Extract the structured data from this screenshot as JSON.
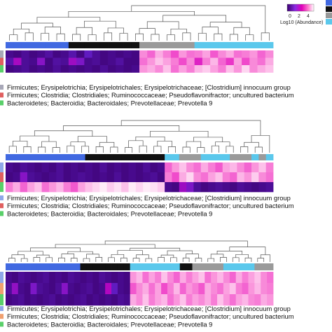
{
  "legend": {
    "title": "Log10 (Abundance)",
    "ticks": [
      "0",
      "2",
      "4"
    ],
    "gradient": [
      "#3a006e",
      "#8a2be2",
      "#e000b8",
      "#ff80d0",
      "#ffffff"
    ],
    "group_colors": [
      "#4169e1",
      "#111111",
      "#999999",
      "#5bc8ec"
    ]
  },
  "colors": {
    "group_blue": "#4169e1",
    "group_black": "#111111",
    "group_grey": "#9a9a9a",
    "group_cyan": "#5bc8ec",
    "row_grey": "#a8a8b8",
    "row_red": "#e06060",
    "row_green": "#5ad06a",
    "row_blue": "#8fa8e8",
    "row_orange": "#f0a070"
  },
  "chart_data": [
    {
      "type": "heatmap",
      "groups": [
        "blue",
        "blue",
        "blue",
        "blue",
        "blue",
        "blue",
        "blue",
        "blue",
        "black",
        "black",
        "black",
        "black",
        "black",
        "black",
        "black",
        "black",
        "black",
        "grey",
        "grey",
        "grey",
        "grey",
        "grey",
        "grey",
        "grey",
        "cyan",
        "cyan",
        "cyan",
        "cyan",
        "cyan",
        "cyan",
        "cyan",
        "cyan",
        "cyan",
        "cyan"
      ],
      "row_colors": [
        "row_grey",
        "row_red",
        "row_green"
      ],
      "rows": [
        "Firmicutes; Erysipelotrichia; Erysipelotrichales; Erysipelotrichaceae; [Clostridium] innocuum group",
        "Firmicutes; Clostridia; Clostridiales; Ruminococcaceae; Pseudoflavonifractor; uncultured bacterium",
        "Bacteroidetes; Bacteroidia; Bacteroidales; Prevotellaceae; Prevotella 9"
      ],
      "values": [
        [
          0.3,
          0.2,
          0.4,
          0.2,
          0.3,
          0.5,
          0.2,
          0.3,
          0.6,
          0.2,
          0.8,
          0.4,
          0.2,
          0.3,
          0.2,
          0.3,
          0.2,
          3.1,
          2.8,
          3.4,
          3.0,
          2.6,
          3.2,
          2.9,
          3.0,
          3.3,
          2.7,
          3.1,
          3.4,
          2.9,
          3.0,
          3.2,
          2.8,
          3.1
        ],
        [
          0.6,
          1.5,
          0.4,
          0.3,
          1.2,
          0.2,
          0.5,
          0.4,
          1.4,
          1.1,
          0.3,
          0.4,
          0.2,
          0.3,
          0.5,
          0.2,
          0.2,
          2.9,
          3.2,
          3.6,
          3.3,
          3.0,
          2.6,
          3.1,
          2.2,
          3.0,
          3.5,
          2.8,
          2.4,
          3.3,
          2.6,
          3.1,
          2.9,
          3.4
        ],
        [
          0.2,
          0.3,
          0.4,
          0.2,
          0.3,
          0.2,
          0.4,
          0.2,
          0.3,
          0.2,
          0.3,
          0.2,
          0.4,
          0.2,
          0.3,
          0.2,
          0.3,
          3.2,
          3.4,
          3.1,
          3.6,
          2.9,
          3.3,
          3.0,
          3.5,
          3.7,
          3.3,
          3.0,
          3.6,
          3.2,
          3.8,
          3.1,
          3.4,
          3.6
        ]
      ]
    },
    {
      "type": "heatmap",
      "groups": [
        "blue",
        "blue",
        "blue",
        "blue",
        "blue",
        "blue",
        "blue",
        "blue",
        "blue",
        "blue",
        "blue",
        "black",
        "black",
        "black",
        "black",
        "black",
        "black",
        "black",
        "black",
        "black",
        "black",
        "black",
        "cyan",
        "cyan",
        "grey",
        "grey",
        "grey",
        "cyan",
        "cyan",
        "cyan",
        "cyan",
        "grey",
        "grey",
        "grey",
        "cyan",
        "grey",
        "cyan"
      ],
      "row_colors": [
        "row_blue",
        "row_red",
        "row_green"
      ],
      "rows": [
        "Firmicutes; Erysipelotrichia; Erysipelotrichales; Erysipelotrichaceae; [Clostridium] innocuum group",
        "Firmicutes; Clostridia; Clostridiales; Ruminococcaceae; Pseudoflavonifractor; uncultured bacterium",
        "Bacteroidetes; Bacteroidia; Bacteroidales; Prevotellaceae; Prevotella 9"
      ],
      "values": [
        [
          0.3,
          0.2,
          0.4,
          0.3,
          0.2,
          0.3,
          0.2,
          0.4,
          0.2,
          0.3,
          0.2,
          0.3,
          0.2,
          0.4,
          0.2,
          0.3,
          0.2,
          0.3,
          0.2,
          0.4,
          0.2,
          0.3,
          2.8,
          3.2,
          3.6,
          3.1,
          2.9,
          3.4,
          3.0,
          2.7,
          3.3,
          3.5,
          3.1,
          2.8,
          3.2,
          3.6,
          3.0
        ],
        [
          0.2,
          0.3,
          1.2,
          0.4,
          0.3,
          0.2,
          0.3,
          0.4,
          0.2,
          0.3,
          0.4,
          0.3,
          0.2,
          0.3,
          0.2,
          0.4,
          0.2,
          0.3,
          0.2,
          0.3,
          0.4,
          0.2,
          3.0,
          2.6,
          3.4,
          3.8,
          3.1,
          2.9,
          3.3,
          3.6,
          3.0,
          2.8,
          3.5,
          3.2,
          3.7,
          3.1,
          2.9
        ],
        [
          3.0,
          3.4,
          2.8,
          3.3,
          3.6,
          2.9,
          3.2,
          3.5,
          3.0,
          2.7,
          3.3,
          3.6,
          3.8,
          4.0,
          3.7,
          3.9,
          3.6,
          4.1,
          3.8,
          4.2,
          3.9,
          3.7,
          0.3,
          0.2,
          1.4,
          1.1,
          0.4,
          0.2,
          0.3,
          0.4,
          0.3,
          0.2,
          0.4,
          0.3,
          0.2,
          0.3,
          0.4
        ]
      ]
    },
    {
      "type": "heatmap",
      "groups": [
        "blue",
        "blue",
        "blue",
        "blue",
        "blue",
        "blue",
        "blue",
        "blue",
        "blue",
        "blue",
        "blue",
        "blue",
        "black",
        "black",
        "black",
        "black",
        "black",
        "black",
        "black",
        "black",
        "cyan",
        "cyan",
        "cyan",
        "cyan",
        "cyan",
        "cyan",
        "cyan",
        "cyan",
        "black",
        "black",
        "grey",
        "grey",
        "grey",
        "grey",
        "grey",
        "cyan",
        "cyan",
        "cyan",
        "cyan",
        "cyan",
        "grey",
        "grey",
        "grey"
      ],
      "row_colors": [
        "row_blue",
        "row_orange",
        "row_green"
      ],
      "rows": [
        "Firmicutes; Erysipelotrichia; Erysipelotrichales; Erysipelotrichaceae; [Clostridium] innocuum group",
        "Firmicutes; Clostridia; Clostridiales; Ruminococcaceae; Pseudoflavonifractor; uncultured bacterium",
        "Bacteroidetes; Bacteroidia; Bacteroidales; Prevotellaceae; Prevotella 9"
      ],
      "values": [
        [
          0.3,
          0.2,
          0.4,
          0.3,
          0.2,
          0.3,
          0.4,
          0.2,
          0.3,
          0.2,
          0.4,
          0.3,
          0.2,
          0.3,
          0.2,
          0.4,
          0.3,
          0.2,
          0.3,
          0.2,
          3.2,
          3.5,
          2.9,
          3.3,
          3.0,
          3.6,
          3.1,
          2.8,
          3.4,
          3.0,
          3.3,
          3.6,
          2.9,
          3.2,
          3.5,
          3.1,
          2.8,
          3.4,
          3.0,
          3.3,
          3.6,
          3.1,
          2.9
        ],
        [
          0.4,
          1.3,
          0.3,
          0.2,
          1.1,
          0.4,
          0.3,
          0.2,
          0.4,
          1.2,
          0.3,
          0.2,
          0.3,
          0.4,
          0.2,
          0.3,
          1.6,
          0.8,
          0.3,
          0.2,
          2.7,
          3.1,
          3.4,
          2.9,
          3.3,
          2.6,
          3.0,
          3.5,
          2.8,
          3.2,
          3.0,
          2.7,
          3.4,
          3.1,
          2.9,
          3.3,
          3.6,
          3.0,
          2.8,
          3.2,
          3.5,
          3.1,
          3.0
        ],
        [
          0.2,
          0.3,
          0.4,
          0.2,
          0.3,
          0.2,
          0.3,
          0.4,
          0.2,
          0.3,
          0.2,
          0.3,
          0.4,
          0.2,
          0.3,
          0.2,
          0.3,
          0.2,
          0.4,
          0.3,
          3.4,
          3.1,
          3.6,
          3.0,
          3.3,
          3.5,
          2.9,
          3.2,
          3.6,
          3.0,
          3.3,
          3.1,
          3.4,
          3.0,
          3.6,
          3.2,
          2.9,
          3.3,
          3.5,
          3.1,
          3.0,
          3.4,
          3.2
        ]
      ]
    }
  ]
}
